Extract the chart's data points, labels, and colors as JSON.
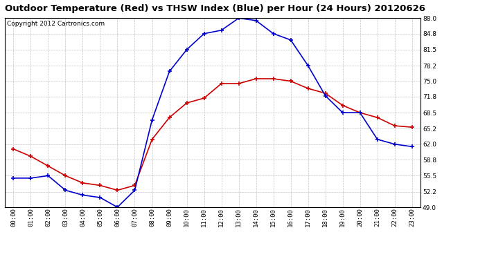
{
  "title": "Outdoor Temperature (Red) vs THSW Index (Blue) per Hour (24 Hours) 20120626",
  "copyright": "Copyright 2012 Cartronics.com",
  "hours": [
    "00:00",
    "01:00",
    "02:00",
    "03:00",
    "04:00",
    "05:00",
    "06:00",
    "07:00",
    "08:00",
    "09:00",
    "10:00",
    "11:00",
    "12:00",
    "13:00",
    "14:00",
    "15:00",
    "16:00",
    "17:00",
    "18:00",
    "19:00",
    "20:00",
    "21:00",
    "22:00",
    "23:00"
  ],
  "red_temp": [
    61.0,
    59.5,
    57.5,
    55.5,
    54.0,
    53.5,
    52.5,
    53.5,
    63.0,
    67.5,
    70.5,
    71.5,
    74.5,
    74.5,
    75.5,
    75.5,
    75.0,
    73.5,
    72.5,
    70.0,
    68.5,
    67.5,
    65.8,
    65.5
  ],
  "blue_thsw": [
    55.0,
    55.0,
    55.5,
    52.5,
    51.5,
    51.0,
    49.0,
    52.5,
    67.0,
    77.0,
    81.5,
    84.8,
    85.5,
    88.0,
    87.5,
    84.8,
    83.5,
    78.2,
    72.0,
    68.5,
    68.5,
    63.0,
    62.0,
    61.5
  ],
  "red_color": "#cc0000",
  "blue_color": "#0000cc",
  "bg_color": "#ffffff",
  "plot_bg_color": "#ffffff",
  "grid_color": "#bbbbbb",
  "ylim_min": 49.0,
  "ylim_max": 88.0,
  "yticks": [
    49.0,
    52.2,
    55.5,
    58.8,
    62.0,
    65.2,
    68.5,
    71.8,
    75.0,
    78.2,
    81.5,
    84.8,
    88.0
  ],
  "title_fontsize": 9.5,
  "copyright_fontsize": 6.5,
  "tick_fontsize": 6.5,
  "marker": "+",
  "marker_size": 5,
  "line_width": 1.2
}
